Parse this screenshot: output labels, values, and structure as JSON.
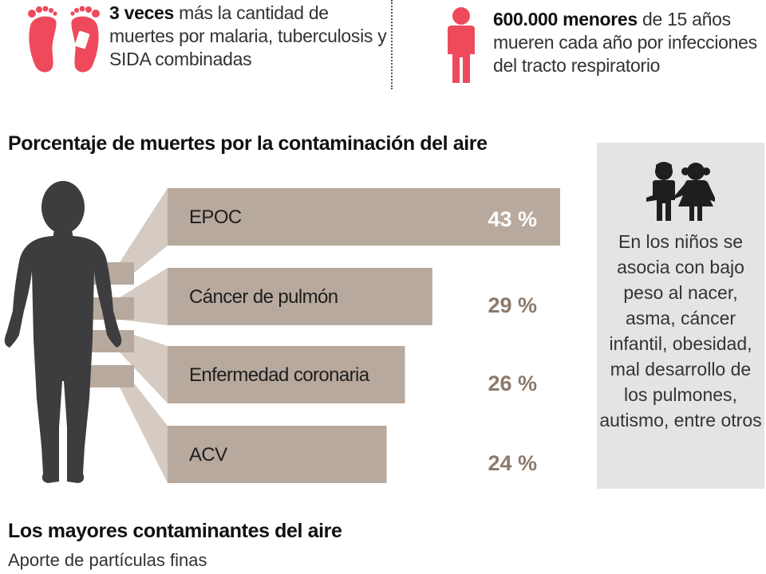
{
  "top_stats": {
    "left": {
      "icon": "feet-icon",
      "highlight": "3 veces",
      "text": " más la cantidad de muertes por malaria, tuberculosis y SIDA combinadas"
    },
    "right": {
      "icon": "child-icon",
      "highlight": "600.000 menores",
      "text": " de 15 años mueren cada año por infecciones del tracto respiratorio"
    }
  },
  "chart_title": "Porcentaje de muertes por la contaminación del aire",
  "chart_data": {
    "type": "bar",
    "orientation": "horizontal",
    "categories": [
      "EPOC",
      "Cáncer de pulmón",
      "Enfermedad coronaria",
      "ACV"
    ],
    "values": [
      43,
      29,
      26,
      24
    ],
    "value_labels": [
      "43 %",
      "29 %",
      "26 %",
      "24 %"
    ],
    "unit": "%",
    "title": "Porcentaje de muertes por la contaminación del aire",
    "xlim": [
      0,
      43
    ]
  },
  "sidebar": {
    "icon": "kids-icon",
    "text": "En los niños se asocia con bajo peso al nacer, asma, cáncer infantil, obesidad, mal desarrollo de los pulmones, autismo, entre otros"
  },
  "section2": {
    "title": "Los mayores contaminantes del aire",
    "subtitle": "Aporte de partículas finas"
  },
  "colors": {
    "accent_red": "#ee4a5c",
    "bar_fill": "#b7a99d",
    "bar_fold": "#d5cbc2",
    "value_text": "#8c796b",
    "body_silhouette": "#3d3d3f",
    "sidebar_bg": "#e4e4e5"
  }
}
